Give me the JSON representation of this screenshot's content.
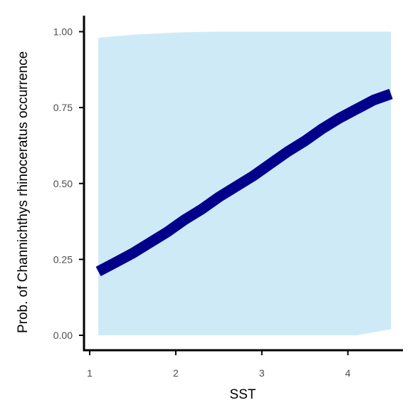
{
  "chart_data": {
    "type": "line",
    "xlabel": "SST",
    "ylabel": "Prob. of  Channichthys rhinoceratus  occurrence",
    "xlim": [
      1.0,
      4.6
    ],
    "ylim": [
      0.0,
      1.0
    ],
    "x_ticks": [
      1,
      2,
      3,
      4
    ],
    "y_ticks": [
      0.0,
      0.25,
      0.5,
      0.75,
      1.0
    ],
    "x_tick_labels": [
      "1",
      "2",
      "3",
      "4"
    ],
    "y_tick_labels": [
      "0.00",
      "0.25",
      "0.50",
      "0.75",
      "1.00"
    ],
    "grid": false,
    "legend": "none",
    "series": [
      {
        "x": [
          1.1,
          1.3,
          1.5,
          1.7,
          1.9,
          2.1,
          2.3,
          2.5,
          2.7,
          2.9,
          3.1,
          3.3,
          3.5,
          3.7,
          3.9,
          4.1,
          4.3,
          4.5
        ],
        "values": [
          0.21,
          0.24,
          0.27,
          0.305,
          0.34,
          0.38,
          0.415,
          0.455,
          0.49,
          0.525,
          0.565,
          0.605,
          0.64,
          0.68,
          0.715,
          0.745,
          0.775,
          0.795
        ],
        "lower": [
          0.0,
          0.0,
          0.0,
          0.0,
          0.0,
          0.0,
          0.0,
          0.0,
          0.0,
          0.0,
          0.0,
          0.0,
          0.0,
          0.0,
          0.0,
          0.0,
          0.01,
          0.02
        ],
        "upper": [
          0.98,
          0.985,
          0.99,
          0.993,
          0.996,
          0.998,
          0.999,
          1.0,
          1.0,
          1.0,
          1.0,
          1.0,
          1.0,
          1.0,
          1.0,
          1.0,
          1.0,
          1.0
        ]
      }
    ],
    "colors": {
      "line": "#00008b",
      "ribbon": "#cfeaf7",
      "axis": "#000000",
      "tick_label": "#4d4d4d"
    }
  }
}
